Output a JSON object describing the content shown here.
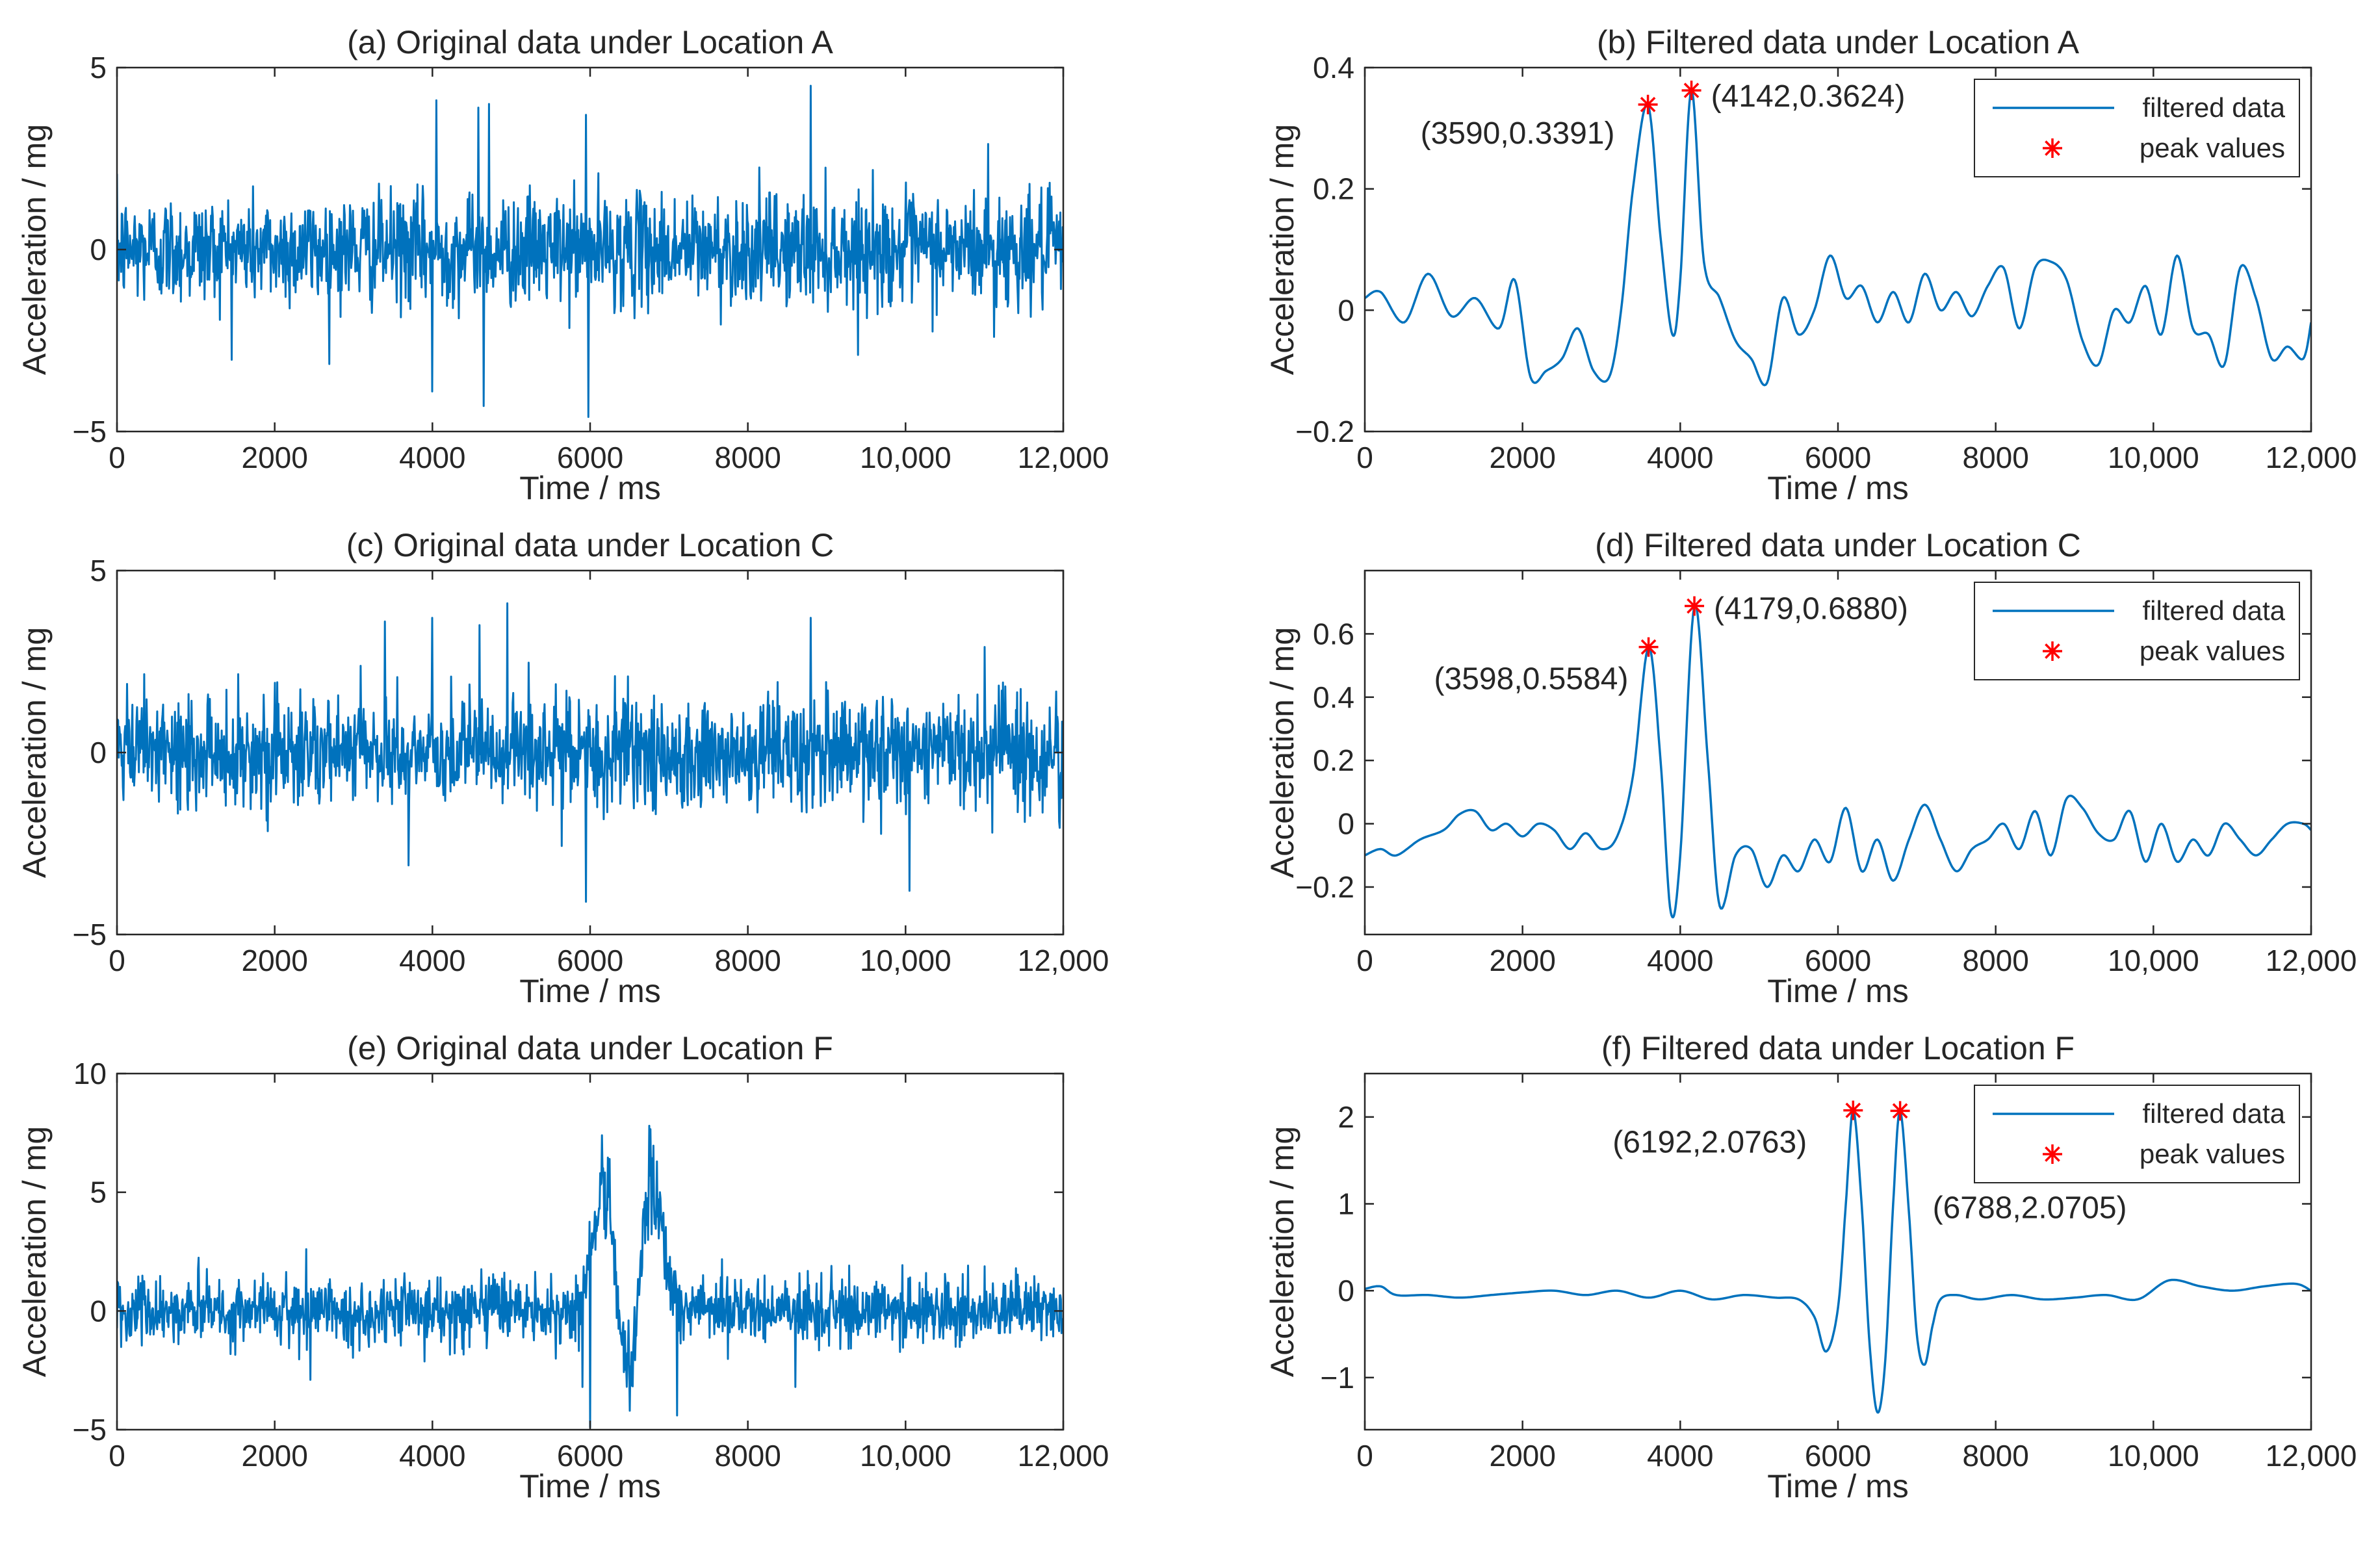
{
  "figure": {
    "colors": {
      "line": "#0072BD",
      "peak": "#FF0000",
      "axis": "#262626"
    },
    "legend": {
      "line_label": "filtered data",
      "marker_label": "peak values"
    }
  },
  "chart_data": [
    {
      "type": "line",
      "id": "a",
      "title": "(a) Original data under Location A",
      "xlabel": "Time / ms",
      "ylabel": "Acceleration / mg",
      "xlim": [
        0,
        12000
      ],
      "ylim": [
        -5,
        5
      ],
      "xticks": [
        0,
        2000,
        4000,
        6000,
        8000,
        10000,
        12000
      ],
      "xtick_labels": [
        "0",
        "2000",
        "4000",
        "6000",
        "8000",
        "10,000",
        "12,000"
      ],
      "yticks": [
        -5,
        0,
        5
      ],
      "ytick_labels": [
        "−5",
        "0",
        "5"
      ],
      "series": [
        {
          "name": "original data",
          "kind": "noise",
          "spikes": [
            [
              4000,
              -3.9
            ],
            [
              4050,
              4.1
            ],
            [
              4580,
              3.9
            ],
            [
              4650,
              -4.3
            ],
            [
              4720,
              4.0
            ],
            [
              5950,
              3.7
            ],
            [
              5980,
              -4.6
            ],
            [
              8800,
              4.5
            ],
            [
              11050,
              2.9
            ],
            [
              11120,
              -2.4
            ]
          ]
        }
      ]
    },
    {
      "type": "line",
      "id": "b",
      "title": "(b) Filtered data under Location A",
      "xlabel": "Time / ms",
      "ylabel": "Acceleration / mg",
      "xlim": [
        0,
        12000
      ],
      "ylim": [
        -0.2,
        0.4
      ],
      "xticks": [
        0,
        2000,
        4000,
        6000,
        8000,
        10000,
        12000
      ],
      "xtick_labels": [
        "0",
        "2000",
        "4000",
        "6000",
        "8000",
        "10,000",
        "12,000"
      ],
      "yticks": [
        -0.2,
        0,
        0.2,
        0.4
      ],
      "ytick_labels": [
        "−0.2",
        "0",
        "0.2",
        "0.4"
      ],
      "series": [
        {
          "name": "filtered data",
          "x": [
            0,
            200,
            500,
            800,
            1100,
            1400,
            1700,
            1900,
            2100,
            2300,
            2500,
            2700,
            2900,
            3100,
            3250,
            3400,
            3590,
            3750,
            3900,
            4000,
            4142,
            4300,
            4500,
            4700,
            4900,
            5100,
            5300,
            5500,
            5700,
            5900,
            6100,
            6300,
            6500,
            6700,
            6900,
            7100,
            7300,
            7500,
            7700,
            7900,
            8100,
            8300,
            8500,
            8700,
            8900,
            9100,
            9300,
            9500,
            9700,
            9900,
            10100,
            10300,
            10500,
            10700,
            10900,
            11100,
            11300,
            11500,
            11700,
            11900,
            12000
          ],
          "y": [
            0.02,
            0.03,
            -0.02,
            0.06,
            -0.01,
            0.02,
            -0.03,
            0.05,
            -0.11,
            -0.1,
            -0.08,
            -0.03,
            -0.1,
            -0.11,
            0.0,
            0.2,
            0.3391,
            0.12,
            -0.04,
            0.05,
            0.3624,
            0.08,
            0.02,
            -0.05,
            -0.08,
            -0.12,
            0.02,
            -0.04,
            0.0,
            0.09,
            0.02,
            0.04,
            -0.02,
            0.03,
            -0.02,
            0.06,
            0.0,
            0.03,
            -0.01,
            0.04,
            0.07,
            -0.03,
            0.07,
            0.08,
            0.05,
            -0.05,
            -0.09,
            0.0,
            -0.02,
            0.04,
            -0.04,
            0.09,
            -0.03,
            -0.04,
            -0.09,
            0.07,
            0.02,
            -0.08,
            -0.06,
            -0.08,
            -0.02
          ]
        }
      ],
      "peaks": [
        {
          "x": 3590,
          "y": 0.3391,
          "label": "(3590,0.3391)"
        },
        {
          "x": 4142,
          "y": 0.3624,
          "label": "(4142,0.3624)"
        }
      ],
      "legend_pos": "top-right"
    },
    {
      "type": "line",
      "id": "c",
      "title": "(c) Original data under Location C",
      "xlabel": "Time / ms",
      "ylabel": "Acceleration / mg",
      "xlim": [
        0,
        12000
      ],
      "ylim": [
        -5,
        5
      ],
      "xticks": [
        0,
        2000,
        4000,
        6000,
        8000,
        10000,
        12000
      ],
      "xtick_labels": [
        "0",
        "2000",
        "4000",
        "6000",
        "8000",
        "10,000",
        "12,000"
      ],
      "yticks": [
        -5,
        0,
        5
      ],
      "ytick_labels": [
        "−5",
        "0",
        "5"
      ],
      "series": [
        {
          "name": "original data",
          "kind": "noise",
          "spikes": [
            [
              3400,
              3.6
            ],
            [
              3700,
              -3.1
            ],
            [
              4000,
              3.7
            ],
            [
              4600,
              3.5
            ],
            [
              4950,
              4.1
            ],
            [
              5950,
              -4.1
            ],
            [
              8800,
              3.7
            ],
            [
              10050,
              -3.8
            ],
            [
              11000,
              2.9
            ],
            [
              11100,
              -2.2
            ]
          ]
        }
      ]
    },
    {
      "type": "line",
      "id": "d",
      "title": "(d) Filtered data under Location C",
      "xlabel": "Time / ms",
      "ylabel": "Acceleration / mg",
      "xlim": [
        0,
        12000
      ],
      "ylim": [
        -0.35,
        0.8
      ],
      "xticks": [
        0,
        2000,
        4000,
        6000,
        8000,
        10000,
        12000
      ],
      "xtick_labels": [
        "0",
        "2000",
        "4000",
        "6000",
        "8000",
        "10,000",
        "12,000"
      ],
      "yticks": [
        -0.2,
        0,
        0.2,
        0.4,
        0.6
      ],
      "ytick_labels": [
        "−0.2",
        "0",
        "0.2",
        "0.4",
        "0.6"
      ],
      "series": [
        {
          "name": "filtered data",
          "x": [
            0,
            200,
            400,
            700,
            1000,
            1200,
            1400,
            1600,
            1800,
            2000,
            2200,
            2400,
            2600,
            2800,
            3000,
            3200,
            3400,
            3598,
            3750,
            3880,
            4000,
            4179,
            4350,
            4500,
            4700,
            4900,
            5100,
            5300,
            5500,
            5700,
            5900,
            6100,
            6300,
            6500,
            6700,
            6900,
            7100,
            7300,
            7500,
            7700,
            7900,
            8100,
            8300,
            8500,
            8700,
            8900,
            9100,
            9300,
            9500,
            9700,
            9900,
            10100,
            10300,
            10500,
            10700,
            10900,
            11100,
            11300,
            11500,
            11700,
            11900,
            12000
          ],
          "y": [
            -0.1,
            -0.08,
            -0.1,
            -0.05,
            -0.02,
            0.03,
            0.04,
            -0.02,
            0.0,
            -0.04,
            0.0,
            -0.02,
            -0.08,
            -0.03,
            -0.08,
            -0.04,
            0.15,
            0.5584,
            0.2,
            -0.28,
            -0.1,
            0.688,
            0.2,
            -0.26,
            -0.1,
            -0.08,
            -0.2,
            -0.1,
            -0.15,
            -0.05,
            -0.12,
            0.05,
            -0.15,
            -0.05,
            -0.18,
            -0.05,
            0.06,
            -0.05,
            -0.15,
            -0.08,
            -0.05,
            0.0,
            -0.08,
            0.04,
            -0.1,
            0.08,
            0.05,
            -0.03,
            -0.05,
            0.04,
            -0.12,
            0.0,
            -0.12,
            -0.05,
            -0.1,
            0.0,
            -0.05,
            -0.1,
            -0.05,
            0.0,
            0.0,
            -0.02
          ]
        }
      ],
      "peaks": [
        {
          "x": 3598,
          "y": 0.5584,
          "label": "(3598,0.5584)"
        },
        {
          "x": 4179,
          "y": 0.688,
          "label": "(4179,0.6880)"
        }
      ],
      "legend_pos": "top-right"
    },
    {
      "type": "line",
      "id": "e",
      "title": "(e) Original data under Location F",
      "xlabel": "Time / ms",
      "ylabel": "Acceleration / mg",
      "xlim": [
        0,
        12000
      ],
      "ylim": [
        -5,
        10
      ],
      "xticks": [
        0,
        2000,
        4000,
        6000,
        8000,
        10000,
        12000
      ],
      "xtick_labels": [
        "0",
        "2000",
        "4000",
        "6000",
        "8000",
        "10,000",
        "12,000"
      ],
      "yticks": [
        -5,
        0,
        5,
        10
      ],
      "ytick_labels": [
        "−5",
        "0",
        "5",
        "10"
      ],
      "series": [
        {
          "name": "original data",
          "kind": "noise",
          "spikes": [
            [
              2400,
              2.6
            ],
            [
              2450,
              -2.9
            ],
            [
              5900,
              -3.2
            ],
            [
              6000,
              -4.9
            ],
            [
              6150,
              7.4
            ],
            [
              6250,
              6.4
            ],
            [
              6500,
              -4.2
            ],
            [
              6750,
              7.8
            ],
            [
              6850,
              6.3
            ],
            [
              7100,
              -4.4
            ],
            [
              8600,
              -3.2
            ],
            [
              11400,
              1.8
            ]
          ],
          "bursts": [
            [
              6200,
              5.5
            ],
            [
              6780,
              5.5
            ],
            [
              6480,
              -3.5
            ]
          ]
        }
      ]
    },
    {
      "type": "line",
      "id": "f",
      "title": "(f) Filtered data under Location F",
      "xlabel": "Time / ms",
      "ylabel": "Acceleration / mg",
      "xlim": [
        0,
        12000
      ],
      "ylim": [
        -1.6,
        2.5
      ],
      "xticks": [
        0,
        2000,
        4000,
        6000,
        8000,
        10000,
        12000
      ],
      "xtick_labels": [
        "0",
        "2000",
        "4000",
        "6000",
        "8000",
        "10,000",
        "12,000"
      ],
      "yticks": [
        -1,
        0,
        1,
        2
      ],
      "ytick_labels": [
        "−1",
        "0",
        "1",
        "2"
      ],
      "series": [
        {
          "name": "filtered data",
          "x": [
            0,
            200,
            400,
            800,
            1200,
            1600,
            2000,
            2400,
            2800,
            3200,
            3600,
            4000,
            4400,
            4800,
            5200,
            5500,
            5700,
            5850,
            6000,
            6100,
            6192,
            6300,
            6400,
            6500,
            6600,
            6700,
            6788,
            6900,
            7000,
            7100,
            7200,
            7300,
            7500,
            7800,
            8200,
            8600,
            9000,
            9400,
            9800,
            10200,
            10600,
            11000,
            11400,
            11800,
            12000
          ],
          "y": [
            0.02,
            0.05,
            -0.05,
            -0.05,
            -0.08,
            -0.05,
            -0.02,
            0.0,
            -0.05,
            0.0,
            -0.08,
            0.0,
            -0.1,
            -0.05,
            -0.08,
            -0.1,
            -0.3,
            -0.7,
            -0.2,
            1.0,
            2.0763,
            1.0,
            -0.6,
            -1.4,
            -0.8,
            1.0,
            2.0705,
            0.9,
            -0.5,
            -0.85,
            -0.4,
            -0.1,
            -0.05,
            -0.1,
            -0.05,
            -0.1,
            -0.08,
            -0.05,
            -0.1,
            0.12,
            0.05,
            0.0,
            0.05,
            0.08,
            0.0
          ]
        }
      ],
      "peaks": [
        {
          "x": 6192,
          "y": 2.0763,
          "label": "(6192,2.0763)"
        },
        {
          "x": 6788,
          "y": 2.0705,
          "label": "(6788,2.0705)"
        }
      ],
      "legend_pos": "top-right"
    }
  ]
}
